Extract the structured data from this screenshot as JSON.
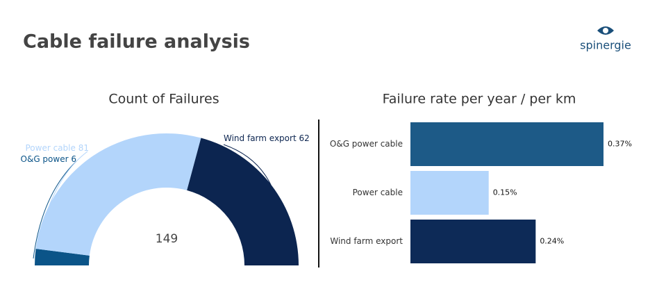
{
  "header": {
    "title": "Cable failure analysis",
    "logo": "spinergie"
  },
  "chart_data": [
    {
      "type": "half-donut",
      "title": "Count of Failures",
      "categories": [
        "O&G power",
        "Power cable",
        "Wind farm export"
      ],
      "values": [
        6,
        81,
        62
      ],
      "colors": [
        "#0b5488",
        "#b3d5fb",
        "#0c2550"
      ],
      "total": 149
    },
    {
      "type": "bar",
      "title": "Failure rate per year / per km",
      "categories": [
        "O&G power cable",
        "Power cable",
        "Wind farm export"
      ],
      "values": [
        0.37,
        0.15,
        0.24
      ],
      "value_labels": [
        "0.37%",
        "0.15%",
        "0.24%"
      ],
      "colors": [
        "#1d5a87",
        "#b3d5fb",
        "#0d2a57"
      ]
    }
  ]
}
